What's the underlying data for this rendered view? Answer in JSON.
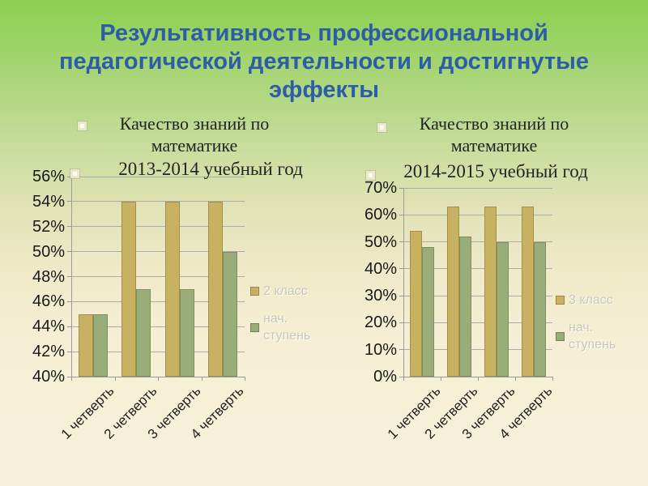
{
  "colors": {
    "title": "#2d5da7",
    "background_top": "#8ccf52",
    "background_bottom": "#f8f1da",
    "bar_gold": "#c8b262",
    "bar_green": "#99ad7a",
    "legend_text": "#c8c6b9",
    "axis_text": "#242424"
  },
  "slide_title": {
    "lines": [
      "Результативность профессиональной",
      "педагогической деятельности и достигнутые",
      "эффекты"
    ]
  },
  "panels": [
    {
      "heading_line1": "Качество знаний по",
      "heading_line2": "математике",
      "subtitle": "2013-2014 учебный год"
    },
    {
      "heading_line1": "Качество знаний по",
      "heading_line2": "математике",
      "subtitle": "2014-2015 учебный год"
    }
  ],
  "chart_data": [
    {
      "type": "bar",
      "title": "Качество знаний по математике 2013-2014 учебный год",
      "categories": [
        "1 четверть",
        "2 четверть",
        "3 четверть",
        "4 четверть"
      ],
      "series": [
        {
          "name": "2 класс",
          "color": "#c8b262",
          "values": [
            45,
            54,
            54,
            54
          ]
        },
        {
          "name": "нач. ступень",
          "color": "#99ad7a",
          "values": [
            45,
            47,
            47,
            50
          ]
        }
      ],
      "xlabel": "",
      "ylabel": "",
      "ylim": [
        40,
        56
      ],
      "yticks": [
        56,
        54,
        52,
        50,
        48,
        46,
        44,
        42,
        40
      ],
      "ytick_suffix": "%",
      "grid": true,
      "legend_position": "right"
    },
    {
      "type": "bar",
      "title": "Качество знаний по математике 2014-2015 учебный год",
      "categories": [
        "1 четверть",
        "2 четверть",
        "3 четверть",
        "4 четверть"
      ],
      "series": [
        {
          "name": "3 класс",
          "color": "#c8b262",
          "values": [
            54,
            63,
            63,
            63
          ]
        },
        {
          "name": "нач. ступень",
          "color": "#99ad7a",
          "values": [
            48,
            52,
            50,
            50
          ]
        }
      ],
      "xlabel": "",
      "ylabel": "",
      "ylim": [
        0,
        70
      ],
      "yticks": [
        70,
        60,
        50,
        40,
        30,
        20,
        10,
        0
      ],
      "ytick_suffix": "%",
      "grid": true,
      "legend_position": "right"
    }
  ]
}
